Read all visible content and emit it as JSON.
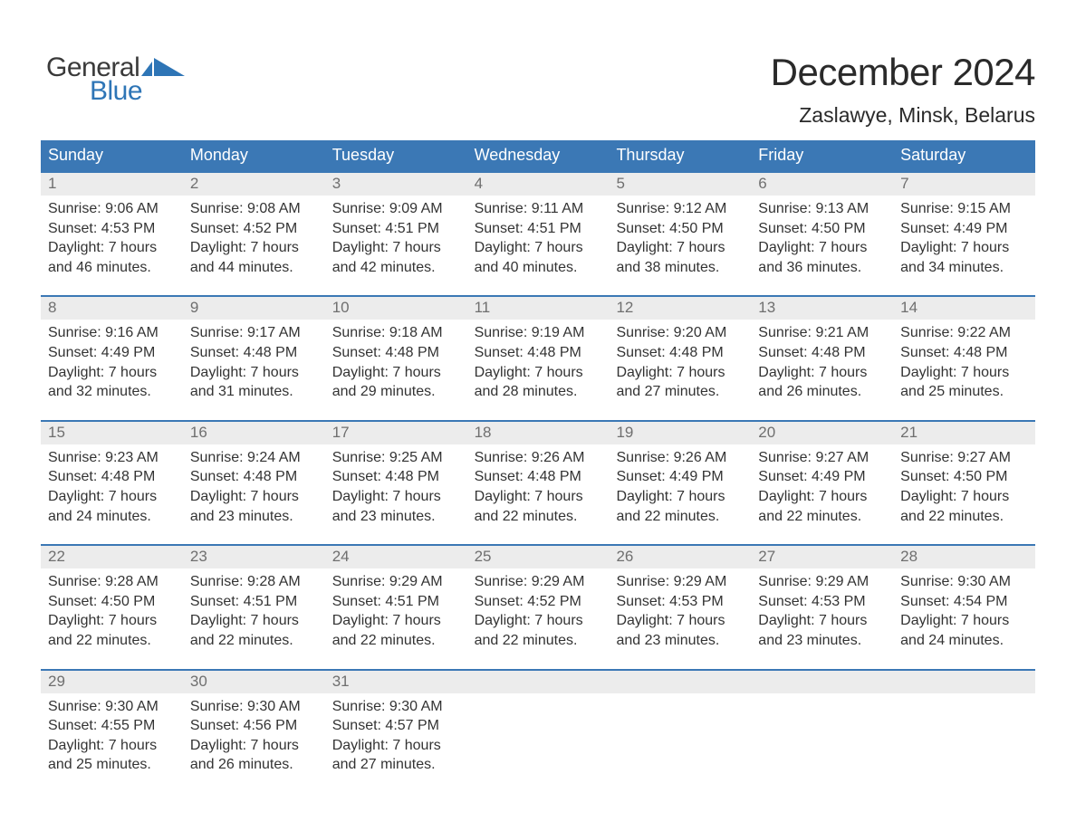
{
  "brand": {
    "word1": "General",
    "word2": "Blue",
    "mark_color": "#2e75b6",
    "text_color_dark": "#3a3a3a",
    "text_color_blue": "#2e75b6"
  },
  "title": "December 2024",
  "location": "Zaslawye, Minsk, Belarus",
  "colors": {
    "header_bg": "#3b78b5",
    "header_text": "#ffffff",
    "daynum_bg": "#ececec",
    "daynum_text": "#6f6f6f",
    "body_text": "#333333",
    "week_border": "#3b78b5",
    "page_bg": "#ffffff"
  },
  "typography": {
    "month_title_fontsize": 42,
    "location_fontsize": 23,
    "dayheader_fontsize": 18,
    "daynum_fontsize": 17,
    "cell_fontsize": 16,
    "logo_fontsize": 30
  },
  "day_names": [
    "Sunday",
    "Monday",
    "Tuesday",
    "Wednesday",
    "Thursday",
    "Friday",
    "Saturday"
  ],
  "weeks": [
    [
      {
        "n": "1",
        "sr": "Sunrise: 9:06 AM",
        "ss": "Sunset: 4:53 PM",
        "d1": "Daylight: 7 hours",
        "d2": "and 46 minutes."
      },
      {
        "n": "2",
        "sr": "Sunrise: 9:08 AM",
        "ss": "Sunset: 4:52 PM",
        "d1": "Daylight: 7 hours",
        "d2": "and 44 minutes."
      },
      {
        "n": "3",
        "sr": "Sunrise: 9:09 AM",
        "ss": "Sunset: 4:51 PM",
        "d1": "Daylight: 7 hours",
        "d2": "and 42 minutes."
      },
      {
        "n": "4",
        "sr": "Sunrise: 9:11 AM",
        "ss": "Sunset: 4:51 PM",
        "d1": "Daylight: 7 hours",
        "d2": "and 40 minutes."
      },
      {
        "n": "5",
        "sr": "Sunrise: 9:12 AM",
        "ss": "Sunset: 4:50 PM",
        "d1": "Daylight: 7 hours",
        "d2": "and 38 minutes."
      },
      {
        "n": "6",
        "sr": "Sunrise: 9:13 AM",
        "ss": "Sunset: 4:50 PM",
        "d1": "Daylight: 7 hours",
        "d2": "and 36 minutes."
      },
      {
        "n": "7",
        "sr": "Sunrise: 9:15 AM",
        "ss": "Sunset: 4:49 PM",
        "d1": "Daylight: 7 hours",
        "d2": "and 34 minutes."
      }
    ],
    [
      {
        "n": "8",
        "sr": "Sunrise: 9:16 AM",
        "ss": "Sunset: 4:49 PM",
        "d1": "Daylight: 7 hours",
        "d2": "and 32 minutes."
      },
      {
        "n": "9",
        "sr": "Sunrise: 9:17 AM",
        "ss": "Sunset: 4:48 PM",
        "d1": "Daylight: 7 hours",
        "d2": "and 31 minutes."
      },
      {
        "n": "10",
        "sr": "Sunrise: 9:18 AM",
        "ss": "Sunset: 4:48 PM",
        "d1": "Daylight: 7 hours",
        "d2": "and 29 minutes."
      },
      {
        "n": "11",
        "sr": "Sunrise: 9:19 AM",
        "ss": "Sunset: 4:48 PM",
        "d1": "Daylight: 7 hours",
        "d2": "and 28 minutes."
      },
      {
        "n": "12",
        "sr": "Sunrise: 9:20 AM",
        "ss": "Sunset: 4:48 PM",
        "d1": "Daylight: 7 hours",
        "d2": "and 27 minutes."
      },
      {
        "n": "13",
        "sr": "Sunrise: 9:21 AM",
        "ss": "Sunset: 4:48 PM",
        "d1": "Daylight: 7 hours",
        "d2": "and 26 minutes."
      },
      {
        "n": "14",
        "sr": "Sunrise: 9:22 AM",
        "ss": "Sunset: 4:48 PM",
        "d1": "Daylight: 7 hours",
        "d2": "and 25 minutes."
      }
    ],
    [
      {
        "n": "15",
        "sr": "Sunrise: 9:23 AM",
        "ss": "Sunset: 4:48 PM",
        "d1": "Daylight: 7 hours",
        "d2": "and 24 minutes."
      },
      {
        "n": "16",
        "sr": "Sunrise: 9:24 AM",
        "ss": "Sunset: 4:48 PM",
        "d1": "Daylight: 7 hours",
        "d2": "and 23 minutes."
      },
      {
        "n": "17",
        "sr": "Sunrise: 9:25 AM",
        "ss": "Sunset: 4:48 PM",
        "d1": "Daylight: 7 hours",
        "d2": "and 23 minutes."
      },
      {
        "n": "18",
        "sr": "Sunrise: 9:26 AM",
        "ss": "Sunset: 4:48 PM",
        "d1": "Daylight: 7 hours",
        "d2": "and 22 minutes."
      },
      {
        "n": "19",
        "sr": "Sunrise: 9:26 AM",
        "ss": "Sunset: 4:49 PM",
        "d1": "Daylight: 7 hours",
        "d2": "and 22 minutes."
      },
      {
        "n": "20",
        "sr": "Sunrise: 9:27 AM",
        "ss": "Sunset: 4:49 PM",
        "d1": "Daylight: 7 hours",
        "d2": "and 22 minutes."
      },
      {
        "n": "21",
        "sr": "Sunrise: 9:27 AM",
        "ss": "Sunset: 4:50 PM",
        "d1": "Daylight: 7 hours",
        "d2": "and 22 minutes."
      }
    ],
    [
      {
        "n": "22",
        "sr": "Sunrise: 9:28 AM",
        "ss": "Sunset: 4:50 PM",
        "d1": "Daylight: 7 hours",
        "d2": "and 22 minutes."
      },
      {
        "n": "23",
        "sr": "Sunrise: 9:28 AM",
        "ss": "Sunset: 4:51 PM",
        "d1": "Daylight: 7 hours",
        "d2": "and 22 minutes."
      },
      {
        "n": "24",
        "sr": "Sunrise: 9:29 AM",
        "ss": "Sunset: 4:51 PM",
        "d1": "Daylight: 7 hours",
        "d2": "and 22 minutes."
      },
      {
        "n": "25",
        "sr": "Sunrise: 9:29 AM",
        "ss": "Sunset: 4:52 PM",
        "d1": "Daylight: 7 hours",
        "d2": "and 22 minutes."
      },
      {
        "n": "26",
        "sr": "Sunrise: 9:29 AM",
        "ss": "Sunset: 4:53 PM",
        "d1": "Daylight: 7 hours",
        "d2": "and 23 minutes."
      },
      {
        "n": "27",
        "sr": "Sunrise: 9:29 AM",
        "ss": "Sunset: 4:53 PM",
        "d1": "Daylight: 7 hours",
        "d2": "and 23 minutes."
      },
      {
        "n": "28",
        "sr": "Sunrise: 9:30 AM",
        "ss": "Sunset: 4:54 PM",
        "d1": "Daylight: 7 hours",
        "d2": "and 24 minutes."
      }
    ],
    [
      {
        "n": "29",
        "sr": "Sunrise: 9:30 AM",
        "ss": "Sunset: 4:55 PM",
        "d1": "Daylight: 7 hours",
        "d2": "and 25 minutes."
      },
      {
        "n": "30",
        "sr": "Sunrise: 9:30 AM",
        "ss": "Sunset: 4:56 PM",
        "d1": "Daylight: 7 hours",
        "d2": "and 26 minutes."
      },
      {
        "n": "31",
        "sr": "Sunrise: 9:30 AM",
        "ss": "Sunset: 4:57 PM",
        "d1": "Daylight: 7 hours",
        "d2": "and 27 minutes."
      },
      {
        "n": "",
        "sr": "",
        "ss": "",
        "d1": "",
        "d2": ""
      },
      {
        "n": "",
        "sr": "",
        "ss": "",
        "d1": "",
        "d2": ""
      },
      {
        "n": "",
        "sr": "",
        "ss": "",
        "d1": "",
        "d2": ""
      },
      {
        "n": "",
        "sr": "",
        "ss": "",
        "d1": "",
        "d2": ""
      }
    ]
  ]
}
